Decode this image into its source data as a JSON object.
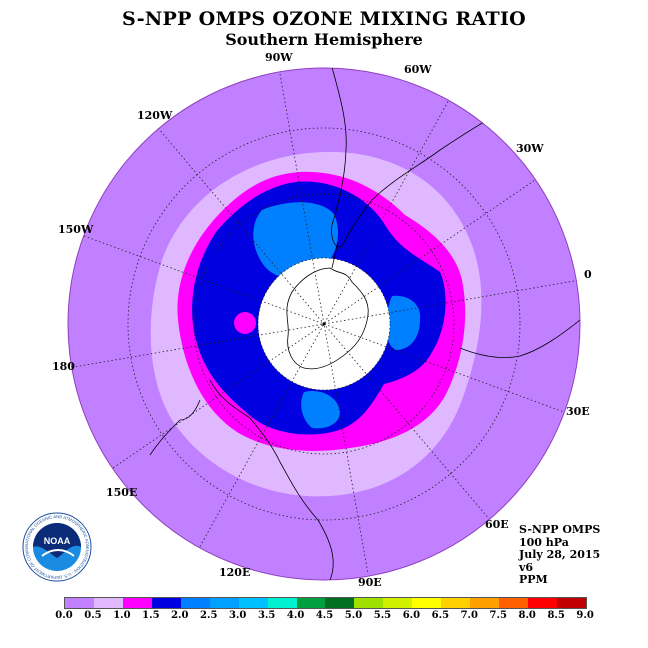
{
  "title": "S-NPP OMPS OZONE MIXING RATIO",
  "subtitle": "Southern Hemisphere",
  "info": {
    "instrument": "S-NPP OMPS",
    "level": "100 hPa",
    "date": "July 28, 2015",
    "version": "v6",
    "units": "PPM"
  },
  "longitude_labels": {
    "lon_90w": "90W",
    "lon_60w": "60W",
    "lon_30w": "30W",
    "lon_0": "0",
    "lon_30e": "30E",
    "lon_60e": "60E",
    "lon_90e": "90E",
    "lon_120e": "120E",
    "lon_150e": "150E",
    "lon_180": "180",
    "lon_150w": "150W",
    "lon_120w": "120W"
  },
  "logo": {
    "text": "NOAA",
    "ring_text": "NATIONAL OCEANIC AND ATMOSPHERIC ADMINISTRATION · U.S. DEPARTMENT OF COMMERCE"
  },
  "colorbar": {
    "ticks": [
      "0.0",
      "0.5",
      "1.0",
      "1.5",
      "2.0",
      "2.5",
      "3.0",
      "3.5",
      "4.0",
      "4.5",
      "5.0",
      "5.5",
      "6.0",
      "6.5",
      "7.0",
      "7.5",
      "8.0",
      "8.5",
      "9.0"
    ],
    "colors": [
      "#c080ff",
      "#e0b8ff",
      "#ff00ff",
      "#0000e0",
      "#0080ff",
      "#00a0ff",
      "#00c0ff",
      "#00f0d0",
      "#00a040",
      "#007020",
      "#a0e000",
      "#d0f000",
      "#ffff00",
      "#ffd000",
      "#ffa000",
      "#ff6000",
      "#ff0000",
      "#c00000",
      "#806040"
    ]
  },
  "chart_data": {
    "type": "heatmap",
    "projection": "south-polar-stereographic",
    "variable": "ozone mixing ratio",
    "units": "PPM",
    "pressure_level_hPa": 100,
    "date": "July 28, 2015",
    "levels": [
      0.0,
      0.5,
      1.0,
      1.5,
      2.0,
      2.5,
      3.0,
      3.5,
      4.0,
      4.5,
      5.0,
      5.5,
      6.0,
      6.5,
      7.0,
      7.5,
      8.0,
      8.5,
      9.0
    ],
    "observed_ranges": [
      {
        "range": "0.0-0.5",
        "region": "outer mid-latitudes"
      },
      {
        "range": "0.5-1.0",
        "region": "ring around polar vortex"
      },
      {
        "range": "1.0-1.5",
        "region": "vortex edge"
      },
      {
        "range": "1.5-2.0",
        "region": "inner vortex"
      },
      {
        "range": "2.0-2.5",
        "region": "patches inside vortex"
      }
    ],
    "missing_data": "polar night region near South Pole (white)"
  }
}
